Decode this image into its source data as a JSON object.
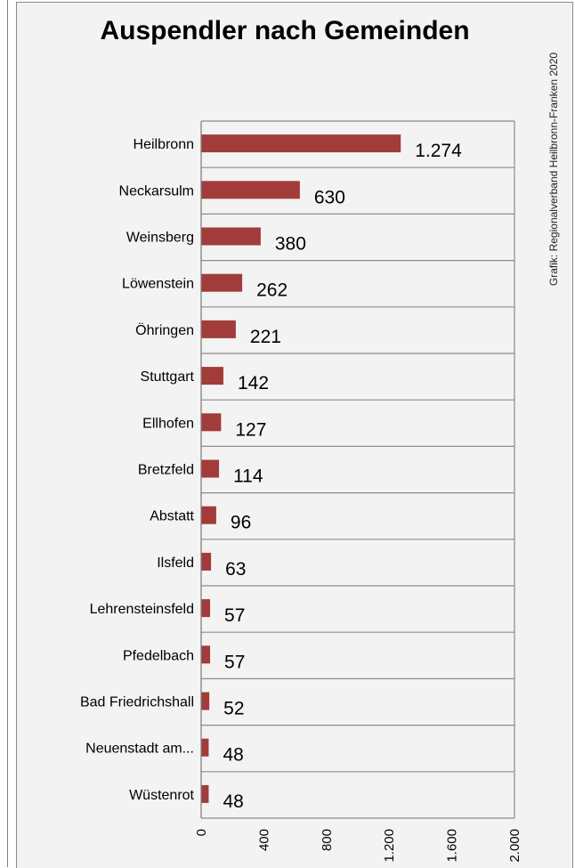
{
  "chart_data": {
    "type": "bar",
    "orientation": "horizontal",
    "title": "Auspendler nach Gemeinden",
    "credit": "Grafik: Regionalverband Heilbronn-Franken 2020",
    "categories": [
      "Heilbronn",
      "Neckarsulm",
      "Weinsberg",
      "Löwenstein",
      "Öhringen",
      "Stuttgart",
      "Ellhofen",
      "Bretzfeld",
      "Abstatt",
      "Ilsfeld",
      "Lehrensteinsfeld",
      "Pfedelbach",
      "Bad Friedrichshall",
      "Neuenstadt am...",
      "Wüstenrot"
    ],
    "values": [
      1274,
      630,
      380,
      262,
      221,
      142,
      127,
      114,
      96,
      63,
      57,
      57,
      52,
      48,
      48
    ],
    "value_labels": [
      "1.274",
      "630",
      "380",
      "262",
      "221",
      "142",
      "127",
      "114",
      "96",
      "63",
      "57",
      "57",
      "52",
      "48",
      "48"
    ],
    "xlim": [
      0,
      2000
    ],
    "x_ticks": [
      0,
      400,
      800,
      1200,
      1600,
      2000
    ],
    "x_tick_labels": [
      "0",
      "400",
      "800",
      "1.200",
      "1.600",
      "2.000"
    ],
    "grid": "horizontal",
    "bar_color": "#a13c3a"
  }
}
